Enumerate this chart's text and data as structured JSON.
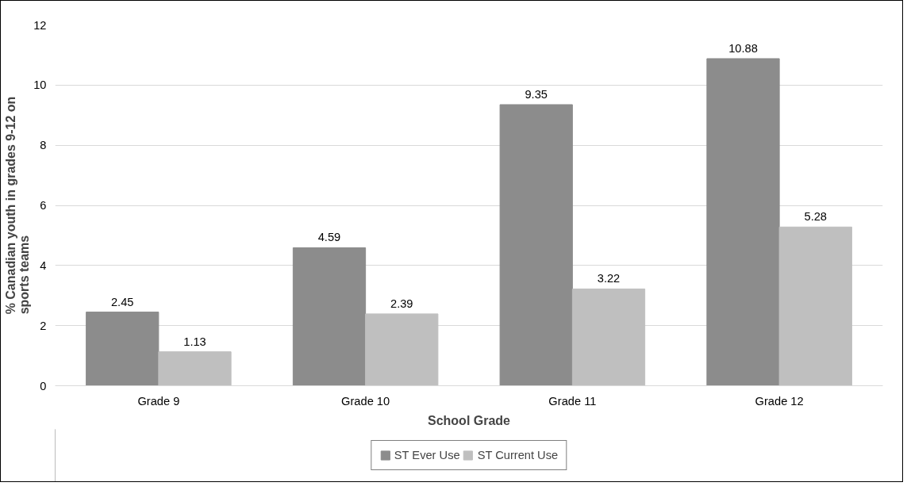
{
  "chart_data": {
    "type": "bar",
    "xlabel": "School Grade",
    "ylabel": "% Canadian youth in grades 9-12 on sports teams",
    "categories": [
      "Grade 9",
      "Grade 10",
      "Grade 11",
      "Grade 12"
    ],
    "series": [
      {
        "name": "ST Ever Use",
        "color": "#8c8c8c",
        "values": [
          2.45,
          4.59,
          9.35,
          10.88
        ]
      },
      {
        "name": "ST Current Use",
        "color": "#bfbfbf",
        "values": [
          1.13,
          2.39,
          3.22,
          5.28
        ]
      }
    ],
    "ylim": [
      0,
      12
    ],
    "yticks": [
      0,
      2,
      4,
      6,
      8,
      10,
      12
    ],
    "grid": "y",
    "legend": "bottom",
    "data_labels": true
  }
}
